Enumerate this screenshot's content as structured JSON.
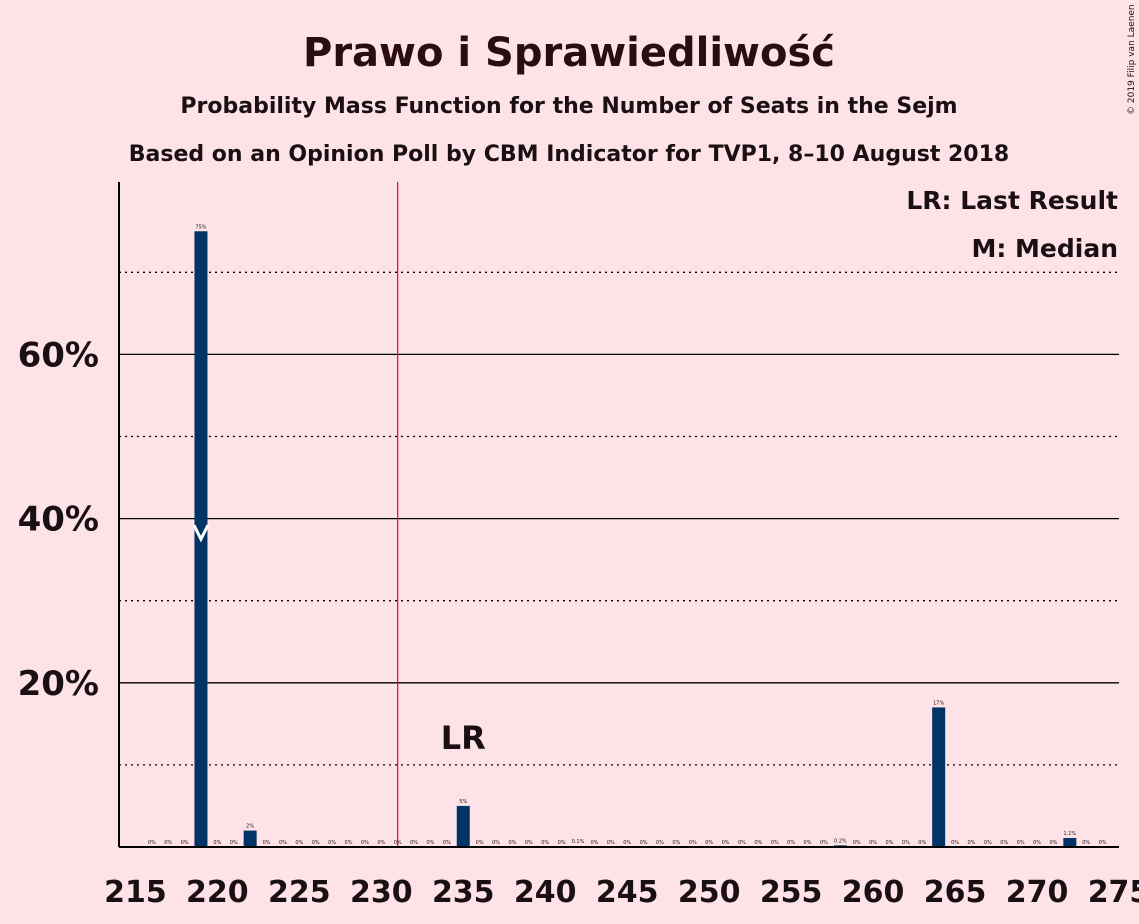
{
  "chart_data": {
    "type": "bar",
    "title": "Prawo i Sprawiedliwość",
    "subtitle": "Probability Mass Function for the Number of Seats in the Sejm",
    "subtitle2": "Based on an Opinion Poll by CBM Indicator for TVP1, 8–10 August 2018",
    "copyright": "© 2019 Filip van Laenen",
    "legend": [
      {
        "text": "LR: Last Result"
      },
      {
        "text": "M: Median"
      }
    ],
    "last_result": {
      "seats": 231,
      "label": "LR",
      "label_seats": 235
    },
    "median": {
      "seats": 219
    },
    "xlim": [
      214,
      275
    ],
    "xticks": [
      215,
      220,
      225,
      230,
      235,
      240,
      245,
      250,
      255,
      260,
      265,
      270,
      275
    ],
    "ylim": [
      0,
      81
    ],
    "yticks_major": [
      20,
      40,
      60
    ],
    "ytick_labels": [
      "20%",
      "40%",
      "60%"
    ],
    "yticks_minor": [
      10,
      30,
      50,
      70
    ],
    "colors": {
      "bar": "#003366",
      "last_result_line": "#e0004d",
      "background": "#fde3e7",
      "median_marker": "#ffffff"
    },
    "x": [
      216,
      217,
      218,
      219,
      220,
      221,
      222,
      223,
      224,
      225,
      226,
      227,
      228,
      229,
      230,
      231,
      232,
      233,
      234,
      235,
      236,
      237,
      238,
      239,
      240,
      241,
      242,
      243,
      244,
      245,
      246,
      247,
      248,
      249,
      250,
      251,
      252,
      253,
      254,
      255,
      256,
      257,
      258,
      259,
      260,
      261,
      262,
      263,
      264,
      265,
      266,
      267,
      268,
      269,
      270,
      271,
      272,
      273,
      274
    ],
    "values": [
      0,
      0,
      0,
      75,
      0,
      0,
      2,
      0,
      0,
      0,
      0,
      0,
      0,
      0,
      0,
      0,
      0,
      0,
      0,
      5,
      0,
      0,
      0,
      0,
      0,
      0,
      0.1,
      0,
      0,
      0,
      0,
      0,
      0,
      0,
      0,
      0,
      0,
      0,
      0,
      0,
      0,
      0,
      0.2,
      0,
      0,
      0,
      0,
      0,
      17,
      0,
      0,
      0,
      0,
      0,
      0,
      0,
      1.1,
      0,
      0
    ],
    "value_labels": [
      "0%",
      "0%",
      "0%",
      "75%",
      "0%",
      "0%",
      "2%",
      "0%",
      "0%",
      "0%",
      "0%",
      "0%",
      "0%",
      "0%",
      "0%",
      "0%",
      "0%",
      "0%",
      "0%",
      "5%",
      "0%",
      "0%",
      "0%",
      "0%",
      "0%",
      "0%",
      "0.1%",
      "0%",
      "0%",
      "0%",
      "0%",
      "0%",
      "0%",
      "0%",
      "0%",
      "0%",
      "0%",
      "0%",
      "0%",
      "0%",
      "0%",
      "0%",
      "0.2%",
      "0%",
      "0%",
      "0%",
      "0%",
      "0%",
      "17%",
      "0%",
      "0%",
      "0%",
      "0%",
      "0%",
      "0%",
      "0%",
      "1.1%",
      "0%",
      "0%"
    ]
  }
}
